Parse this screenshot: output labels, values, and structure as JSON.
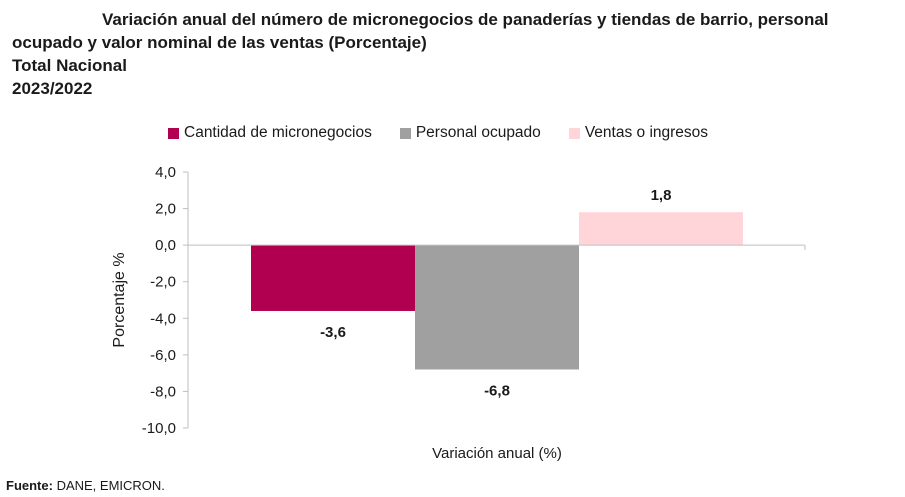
{
  "title": {
    "line1": "Variación anual del número de micronegocios de panaderías y tiendas de barrio, personal",
    "line2": "ocupado y valor nominal de las ventas (Porcentaje)",
    "line3": "Total Nacional",
    "line4": "2023/2022"
  },
  "source": {
    "label": "Fuente:",
    "text": " DANE, EMICRON."
  },
  "colors": {
    "series1": "#b0004f",
    "series2": "#a0a0a0",
    "series3": "#ffd5d9",
    "axis": "#bfbfbf"
  },
  "chart_data": {
    "type": "bar",
    "xlabel": "Variación anual (%)",
    "ylabel": "Porcentaje %",
    "ylim": [
      -10,
      4
    ],
    "yticks": [
      "4,0",
      "2,0",
      "0,0",
      "-2,0",
      "-4,0",
      "-6,0",
      "-8,0",
      "-10,0"
    ],
    "ytick_values": [
      4,
      2,
      0,
      -2,
      -4,
      -6,
      -8,
      -10
    ],
    "legend_position": "top",
    "grid": false,
    "series": [
      {
        "name": "Cantidad de micronegocios",
        "values": [
          -3.6
        ],
        "label": "-3,6",
        "color": "#b0004f"
      },
      {
        "name": "Personal ocupado",
        "values": [
          -6.8
        ],
        "label": "-6,8",
        "color": "#a0a0a0"
      },
      {
        "name": "Ventas o ingresos",
        "values": [
          1.8
        ],
        "label": "1,8",
        "color": "#ffd5d9"
      }
    ]
  }
}
